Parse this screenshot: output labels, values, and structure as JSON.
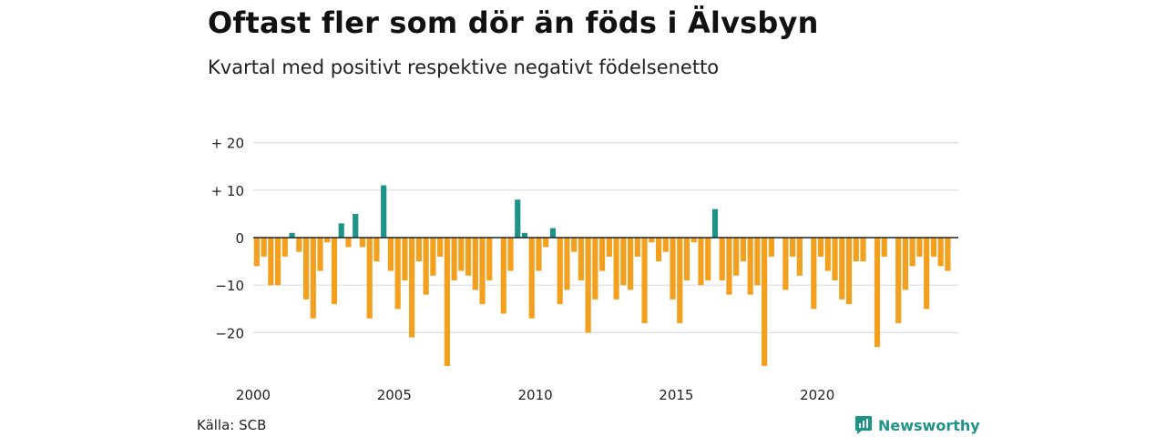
{
  "header": {
    "title": "Oftast fler som dör än föds i Älvsbyn",
    "subtitle": "Kvartal med positivt respektive negativt födelsenetto"
  },
  "footer": {
    "source": "Källa: SCB",
    "brand": "Newsworthy",
    "brand_icon": "chart-bubble-icon"
  },
  "colors": {
    "positive": "#1e9387",
    "negative": "#f2a01e",
    "grid": "#dddddd",
    "zero_line": "#222222",
    "brand": "#1e9387"
  },
  "chart_data": {
    "type": "bar",
    "title": "",
    "xlabel": "",
    "ylabel": "",
    "ylim": [
      -28,
      20
    ],
    "xlim": [
      2000,
      2025
    ],
    "grid": true,
    "legend": "none",
    "y_ticks": [
      20,
      10,
      0,
      -10,
      -20
    ],
    "y_tick_labels": [
      "+ 20",
      "+ 10",
      "0",
      "−10",
      "−20"
    ],
    "x_tick_labels": [
      "2000",
      "2005",
      "2010",
      "2015",
      "2020"
    ],
    "x_ticks": [
      2000,
      2005,
      2010,
      2015,
      2020
    ],
    "first_period": "2000 Q1",
    "step": "quarter",
    "values": [
      -6,
      -4,
      -10,
      -10,
      -4,
      1,
      -3,
      -13,
      -17,
      -7,
      -1,
      -14,
      3,
      -2,
      5,
      -2,
      -17,
      -5,
      11,
      -7,
      -15,
      -9,
      -21,
      -5,
      -12,
      -8,
      -4,
      -27,
      -9,
      -7,
      -8,
      -11,
      -14,
      -9,
      0,
      -16,
      -7,
      8,
      1,
      -17,
      -7,
      -2,
      2,
      -14,
      -11,
      -3,
      -9,
      -20,
      -13,
      -7,
      -4,
      -13,
      -10,
      -11,
      -4,
      -18,
      -1,
      -5,
      -3,
      -13,
      -18,
      -9,
      -1,
      -10,
      -9,
      6,
      -9,
      -12,
      -8,
      -5,
      -12,
      -10,
      -27,
      -4,
      0,
      -11,
      -4,
      -8,
      0,
      -15,
      -4,
      -7,
      -9,
      -13,
      -14,
      -5,
      -5,
      0,
      -23,
      -4,
      0,
      -18,
      -11,
      -6,
      -4,
      -15,
      -4,
      -6,
      -7
    ]
  }
}
